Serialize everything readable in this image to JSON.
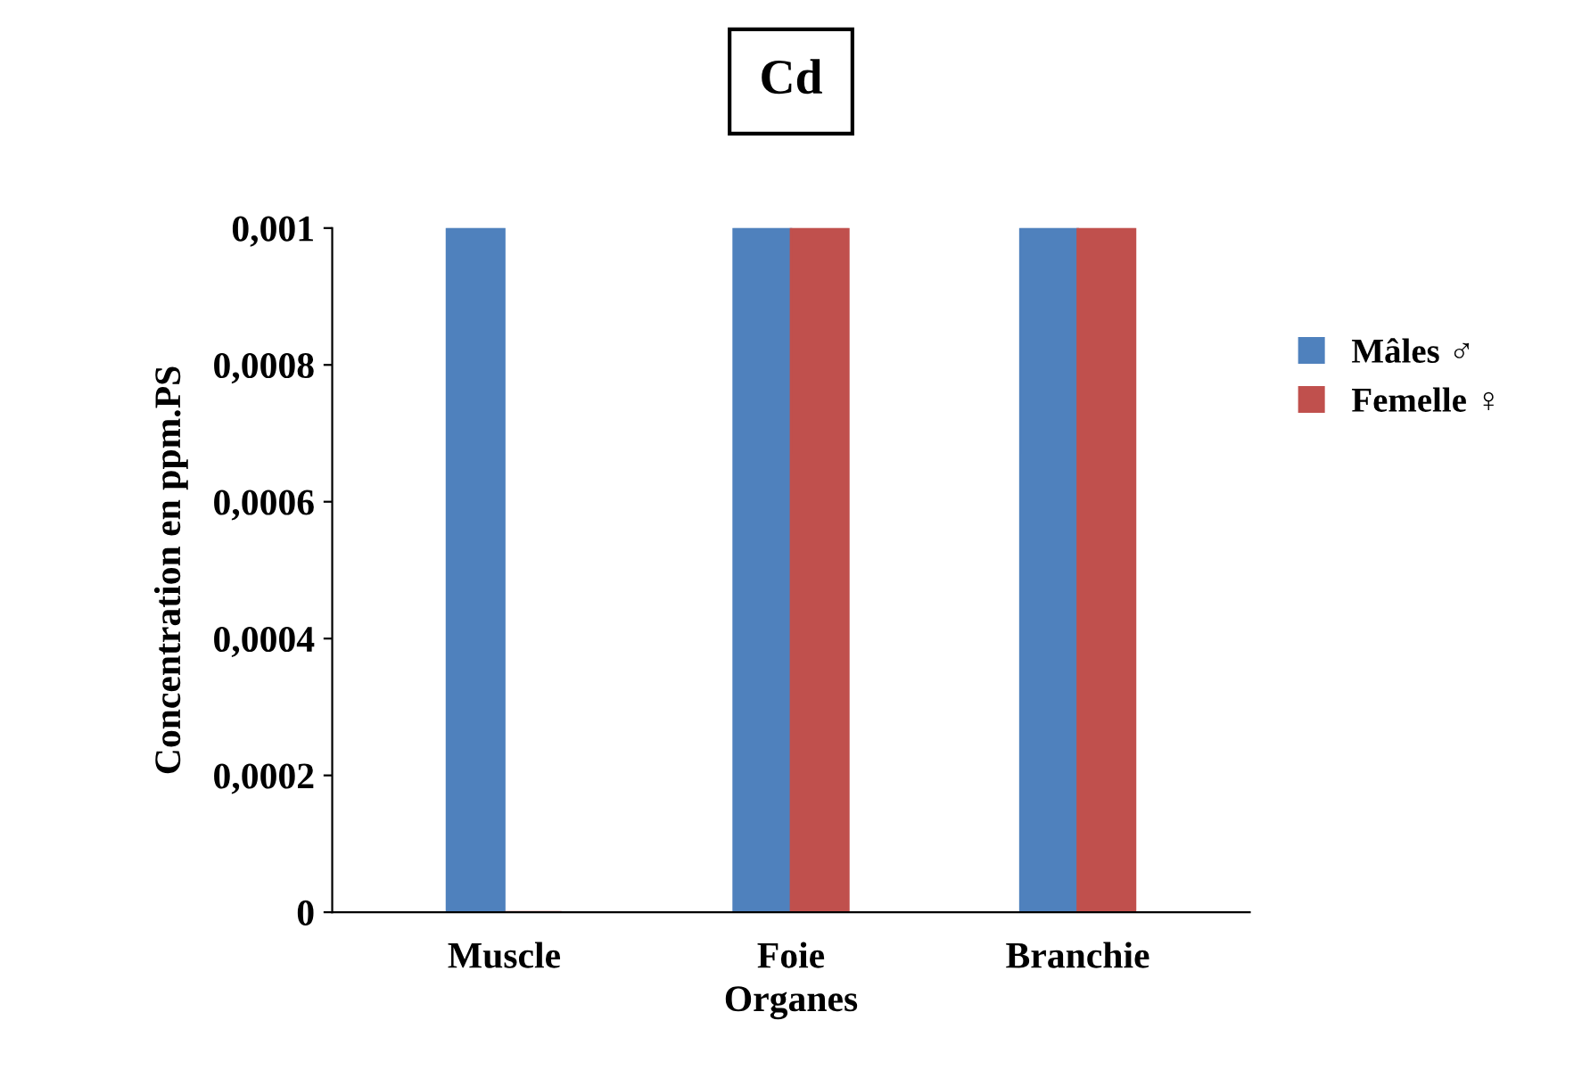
{
  "chart_data": {
    "type": "bar",
    "title": "Cd",
    "xlabel": "Organes",
    "ylabel": "Concentration en ppm.PS",
    "categories": [
      "Muscle",
      "Foie",
      "Branchie"
    ],
    "series": [
      {
        "name": "Mâles ♂",
        "color": "#4f81bd",
        "values": [
          0.001,
          0.001,
          0.001
        ]
      },
      {
        "name": "Femelle ♀",
        "color": "#c0504d",
        "values": [
          0,
          0.001,
          0.001
        ]
      }
    ],
    "ylim": [
      0,
      0.001
    ],
    "yticks": [
      0,
      {
        "value": 0.0002,
        "label": "0,0002"
      },
      {
        "value": 0.0004,
        "label": "0,0004"
      },
      {
        "value": 0.0006,
        "label": "0,0006"
      },
      {
        "value": 0.0008,
        "label": "0,0008"
      },
      {
        "value": 0.001,
        "label": "0,001"
      }
    ],
    "grid": false,
    "legend": "right"
  }
}
